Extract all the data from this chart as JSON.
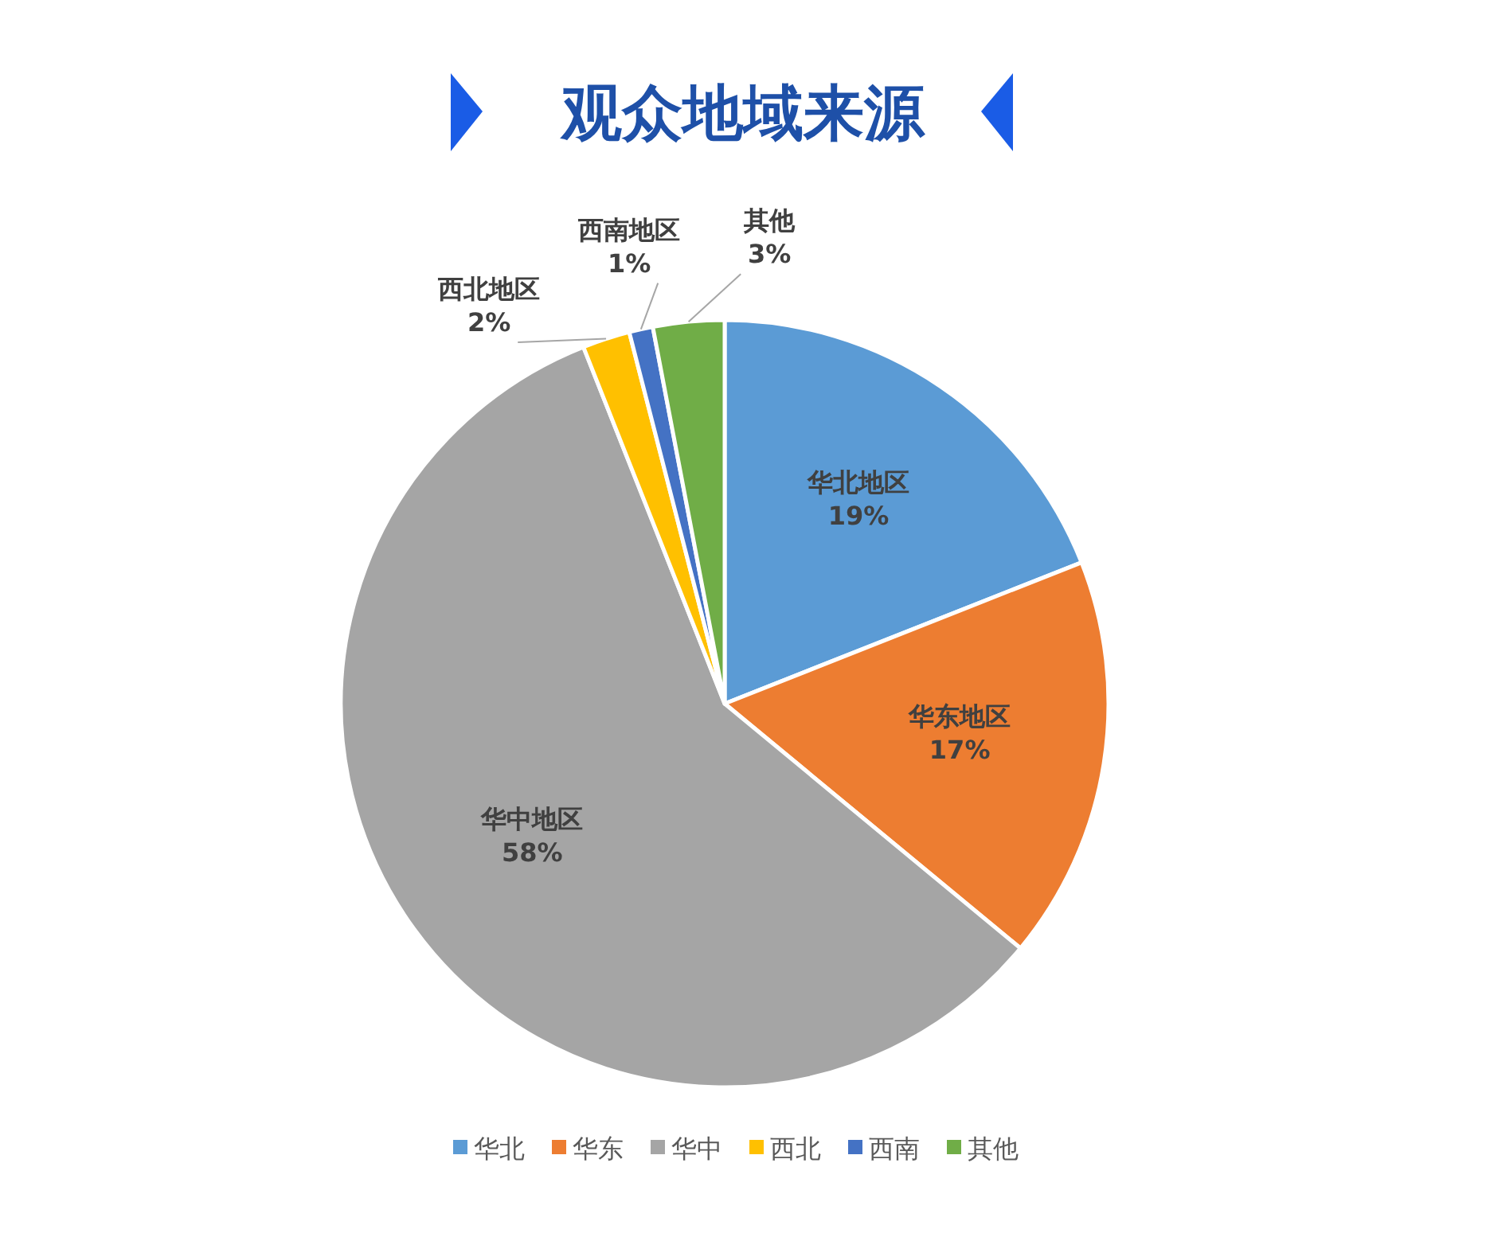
{
  "chart_data": {
    "type": "pie",
    "title": "观众地域来源",
    "categories": [
      "华北",
      "华东",
      "华中",
      "西北",
      "西南",
      "其他"
    ],
    "values": [
      19,
      17,
      58,
      2,
      1,
      3
    ],
    "colors": [
      "#5b9bd5",
      "#ed7d31",
      "#a5a5a5",
      "#ffc000",
      "#4472c4",
      "#70ad47"
    ],
    "value_labels": [
      "华北地区\n19%",
      "华东地区\n17%",
      "华中地区\n58%",
      "西北地区\n2%",
      "西南地区\n1%",
      "其他\n3%"
    ],
    "legend": "bottom"
  }
}
